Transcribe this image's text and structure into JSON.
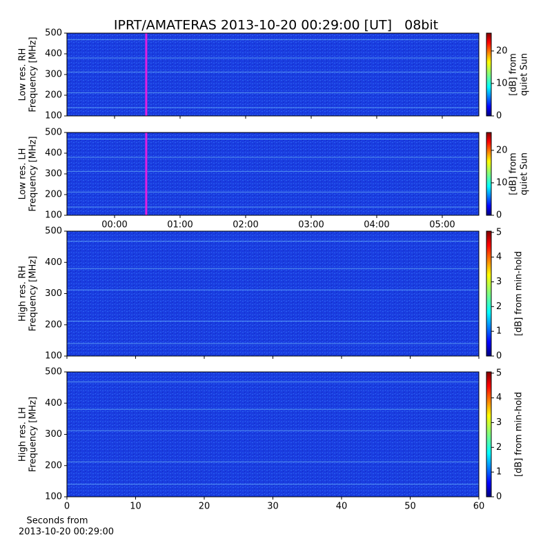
{
  "title": "IPRT/AMATERAS 2013-10-20 00:29:00 [UT]   08bit",
  "chart_data": [
    {
      "type": "spectrogram",
      "ylabel": [
        "Low res. RH",
        "Frequency [MHz]"
      ],
      "ylim": [
        100,
        500
      ],
      "yticks": [
        100,
        200,
        300,
        400,
        500
      ],
      "marker_x": 29,
      "marker_color": "#e020e0",
      "colormap": "jet",
      "clim": [
        0,
        25.5
      ],
      "cticks": [
        0,
        10,
        20
      ],
      "clabel": [
        "[dB] from",
        "quiet Sun"
      ]
    },
    {
      "type": "spectrogram",
      "ylabel": [
        "Low res. LH",
        "Frequency [MHz]"
      ],
      "ylim": [
        100,
        500
      ],
      "yticks": [
        100,
        200,
        300,
        400,
        500
      ],
      "xlim": [
        -43.6,
        333.5
      ],
      "xticks": [
        {
          "value": 0,
          "label": "00:00"
        },
        {
          "value": 60,
          "label": "01:00"
        },
        {
          "value": 120,
          "label": "02:00"
        },
        {
          "value": 180,
          "label": "03:00"
        },
        {
          "value": 240,
          "label": "04:00"
        },
        {
          "value": 300,
          "label": "05:00"
        }
      ],
      "marker_x": 29,
      "marker_color": "#e020e0",
      "colormap": "jet",
      "clim": [
        0,
        25.5
      ],
      "cticks": [
        0,
        10,
        20
      ],
      "clabel": [
        "[dB] from",
        "quiet Sun"
      ]
    },
    {
      "type": "spectrogram",
      "ylabel": [
        "High res. RH",
        "Frequency [MHz]"
      ],
      "ylim": [
        100,
        500
      ],
      "yticks": [
        100,
        200,
        300,
        400,
        500
      ],
      "colormap": "jet",
      "clim": [
        0,
        5.05
      ],
      "cticks": [
        0,
        1,
        2,
        3,
        4,
        5
      ],
      "clabel": [
        "[dB] from min-hold"
      ]
    },
    {
      "type": "spectrogram",
      "ylabel": [
        "High res. LH",
        "Frequency [MHz]"
      ],
      "ylim": [
        100,
        500
      ],
      "yticks": [
        100,
        200,
        300,
        400,
        500
      ],
      "xlim": [
        0,
        60
      ],
      "xticks": [
        0,
        10,
        20,
        30,
        40,
        50,
        60
      ],
      "xlabel": [
        "Seconds from",
        "2013-10-20 00:29:00"
      ],
      "colormap": "jet",
      "clim": [
        0,
        5.05
      ],
      "cticks": [
        0,
        1,
        2,
        3,
        4,
        5
      ],
      "clabel": [
        "[dB] from min-hold"
      ]
    }
  ]
}
